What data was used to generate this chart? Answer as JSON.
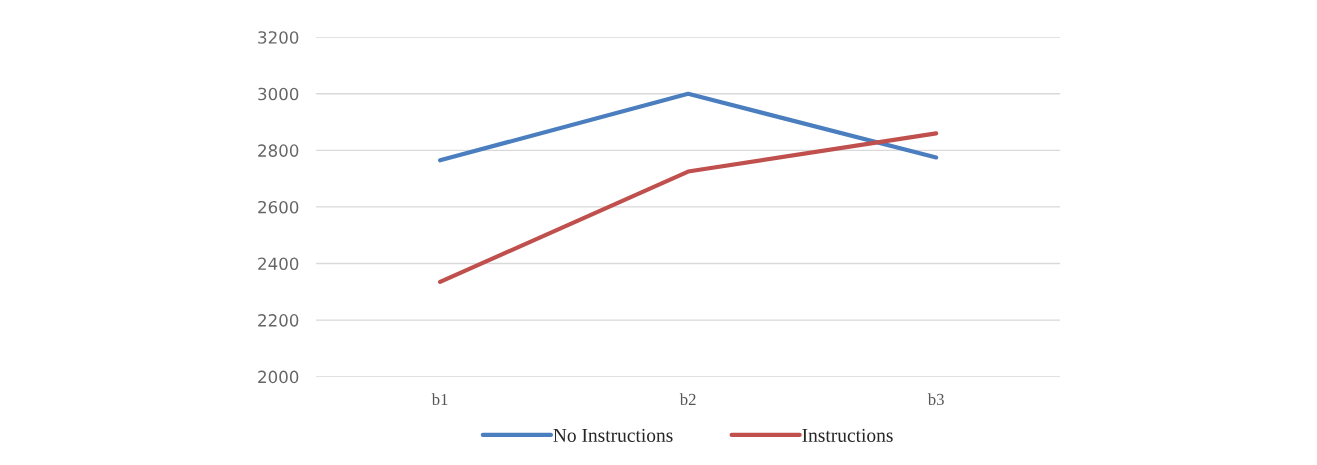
{
  "chart_data": {
    "type": "line",
    "categories": [
      "b1",
      "b2",
      "b3"
    ],
    "series": [
      {
        "name": "No Instructions",
        "color": "#4a7ebf",
        "values": [
          2765,
          3000,
          2775
        ]
      },
      {
        "name": "Instructions",
        "color": "#c0504d",
        "values": [
          2335,
          2725,
          2860
        ]
      }
    ],
    "ylim": [
      2000,
      3200
    ],
    "yticks": [
      2000,
      2200,
      2400,
      2600,
      2800,
      3000,
      3200
    ],
    "grid": "y",
    "legend": "bottom",
    "marker": "none",
    "line_style": "solid"
  }
}
